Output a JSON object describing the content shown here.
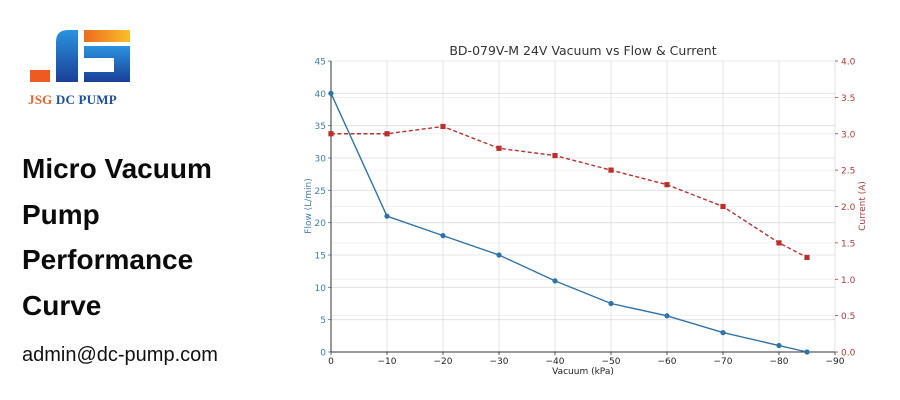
{
  "brand": {
    "logo_mark": "JS",
    "logo_text_part1": "JSG",
    "logo_text_part2": "DC PUMP",
    "colors": {
      "orange": "#f0741f",
      "yellow": "#f6b21b",
      "blue": "#1f7fd1",
      "navy": "#1a3f97",
      "red_text": "#e8622a",
      "navy_text": "#1e4fa0"
    }
  },
  "headline": {
    "lines": [
      "Micro Vacuum",
      "Pump",
      "Performance",
      "Curve"
    ]
  },
  "contact": {
    "email": "admin@dc-pump.com"
  },
  "chart_data": {
    "type": "line",
    "title": "BD-079V-M 24V Vacuum vs Flow & Current",
    "xlabel": "Vacuum (kPa)",
    "ylabel": "Flow (L/min)",
    "y2label": "Current (A)",
    "xlim": [
      0,
      -90
    ],
    "ylim": [
      0,
      45
    ],
    "y2lim": [
      0,
      4.0
    ],
    "x_ticks": [
      "0",
      "−10",
      "−20",
      "−30",
      "−40",
      "−50",
      "−60",
      "−70",
      "−80",
      "−90"
    ],
    "x_tick_values": [
      0,
      -10,
      -20,
      -30,
      -40,
      -50,
      -60,
      -70,
      -80,
      -90
    ],
    "y_ticks": [
      "0",
      "5",
      "10",
      "15",
      "20",
      "25",
      "30",
      "35",
      "40",
      "45"
    ],
    "y_tick_values": [
      0,
      5,
      10,
      15,
      20,
      25,
      30,
      35,
      40,
      45
    ],
    "y2_ticks": [
      "0.0",
      "0.5",
      "1.0",
      "1.5",
      "2.0",
      "2.5",
      "3.0",
      "3.5",
      "4.0"
    ],
    "y2_tick_values": [
      0,
      0.5,
      1.0,
      1.5,
      2.0,
      2.5,
      3.0,
      3.5,
      4.0
    ],
    "grid": true,
    "legend": "none",
    "series": [
      {
        "name": "Flow (L/min)",
        "axis": "left",
        "color": "#2f73a8",
        "style": "solid",
        "marker": "circle",
        "x": [
          0,
          -10,
          -20,
          -30,
          -40,
          -50,
          -60,
          -70,
          -80,
          -85
        ],
        "values": [
          40,
          21,
          18,
          15,
          11,
          7.5,
          5.6,
          3.0,
          1.0,
          0
        ]
      },
      {
        "name": "Current (A)",
        "axis": "right",
        "color": "#b8312f",
        "style": "dashed",
        "marker": "square",
        "x": [
          0,
          -10,
          -20,
          -30,
          -40,
          -50,
          -60,
          -70,
          -80,
          -85
        ],
        "values": [
          3.0,
          3.0,
          3.1,
          2.8,
          2.7,
          2.5,
          2.3,
          2.0,
          1.5,
          1.3
        ]
      }
    ],
    "colors": {
      "left_axis": "#3f7ea8",
      "right_axis": "#b03a3a",
      "title": "#333333",
      "grid": "#dddddd"
    }
  }
}
